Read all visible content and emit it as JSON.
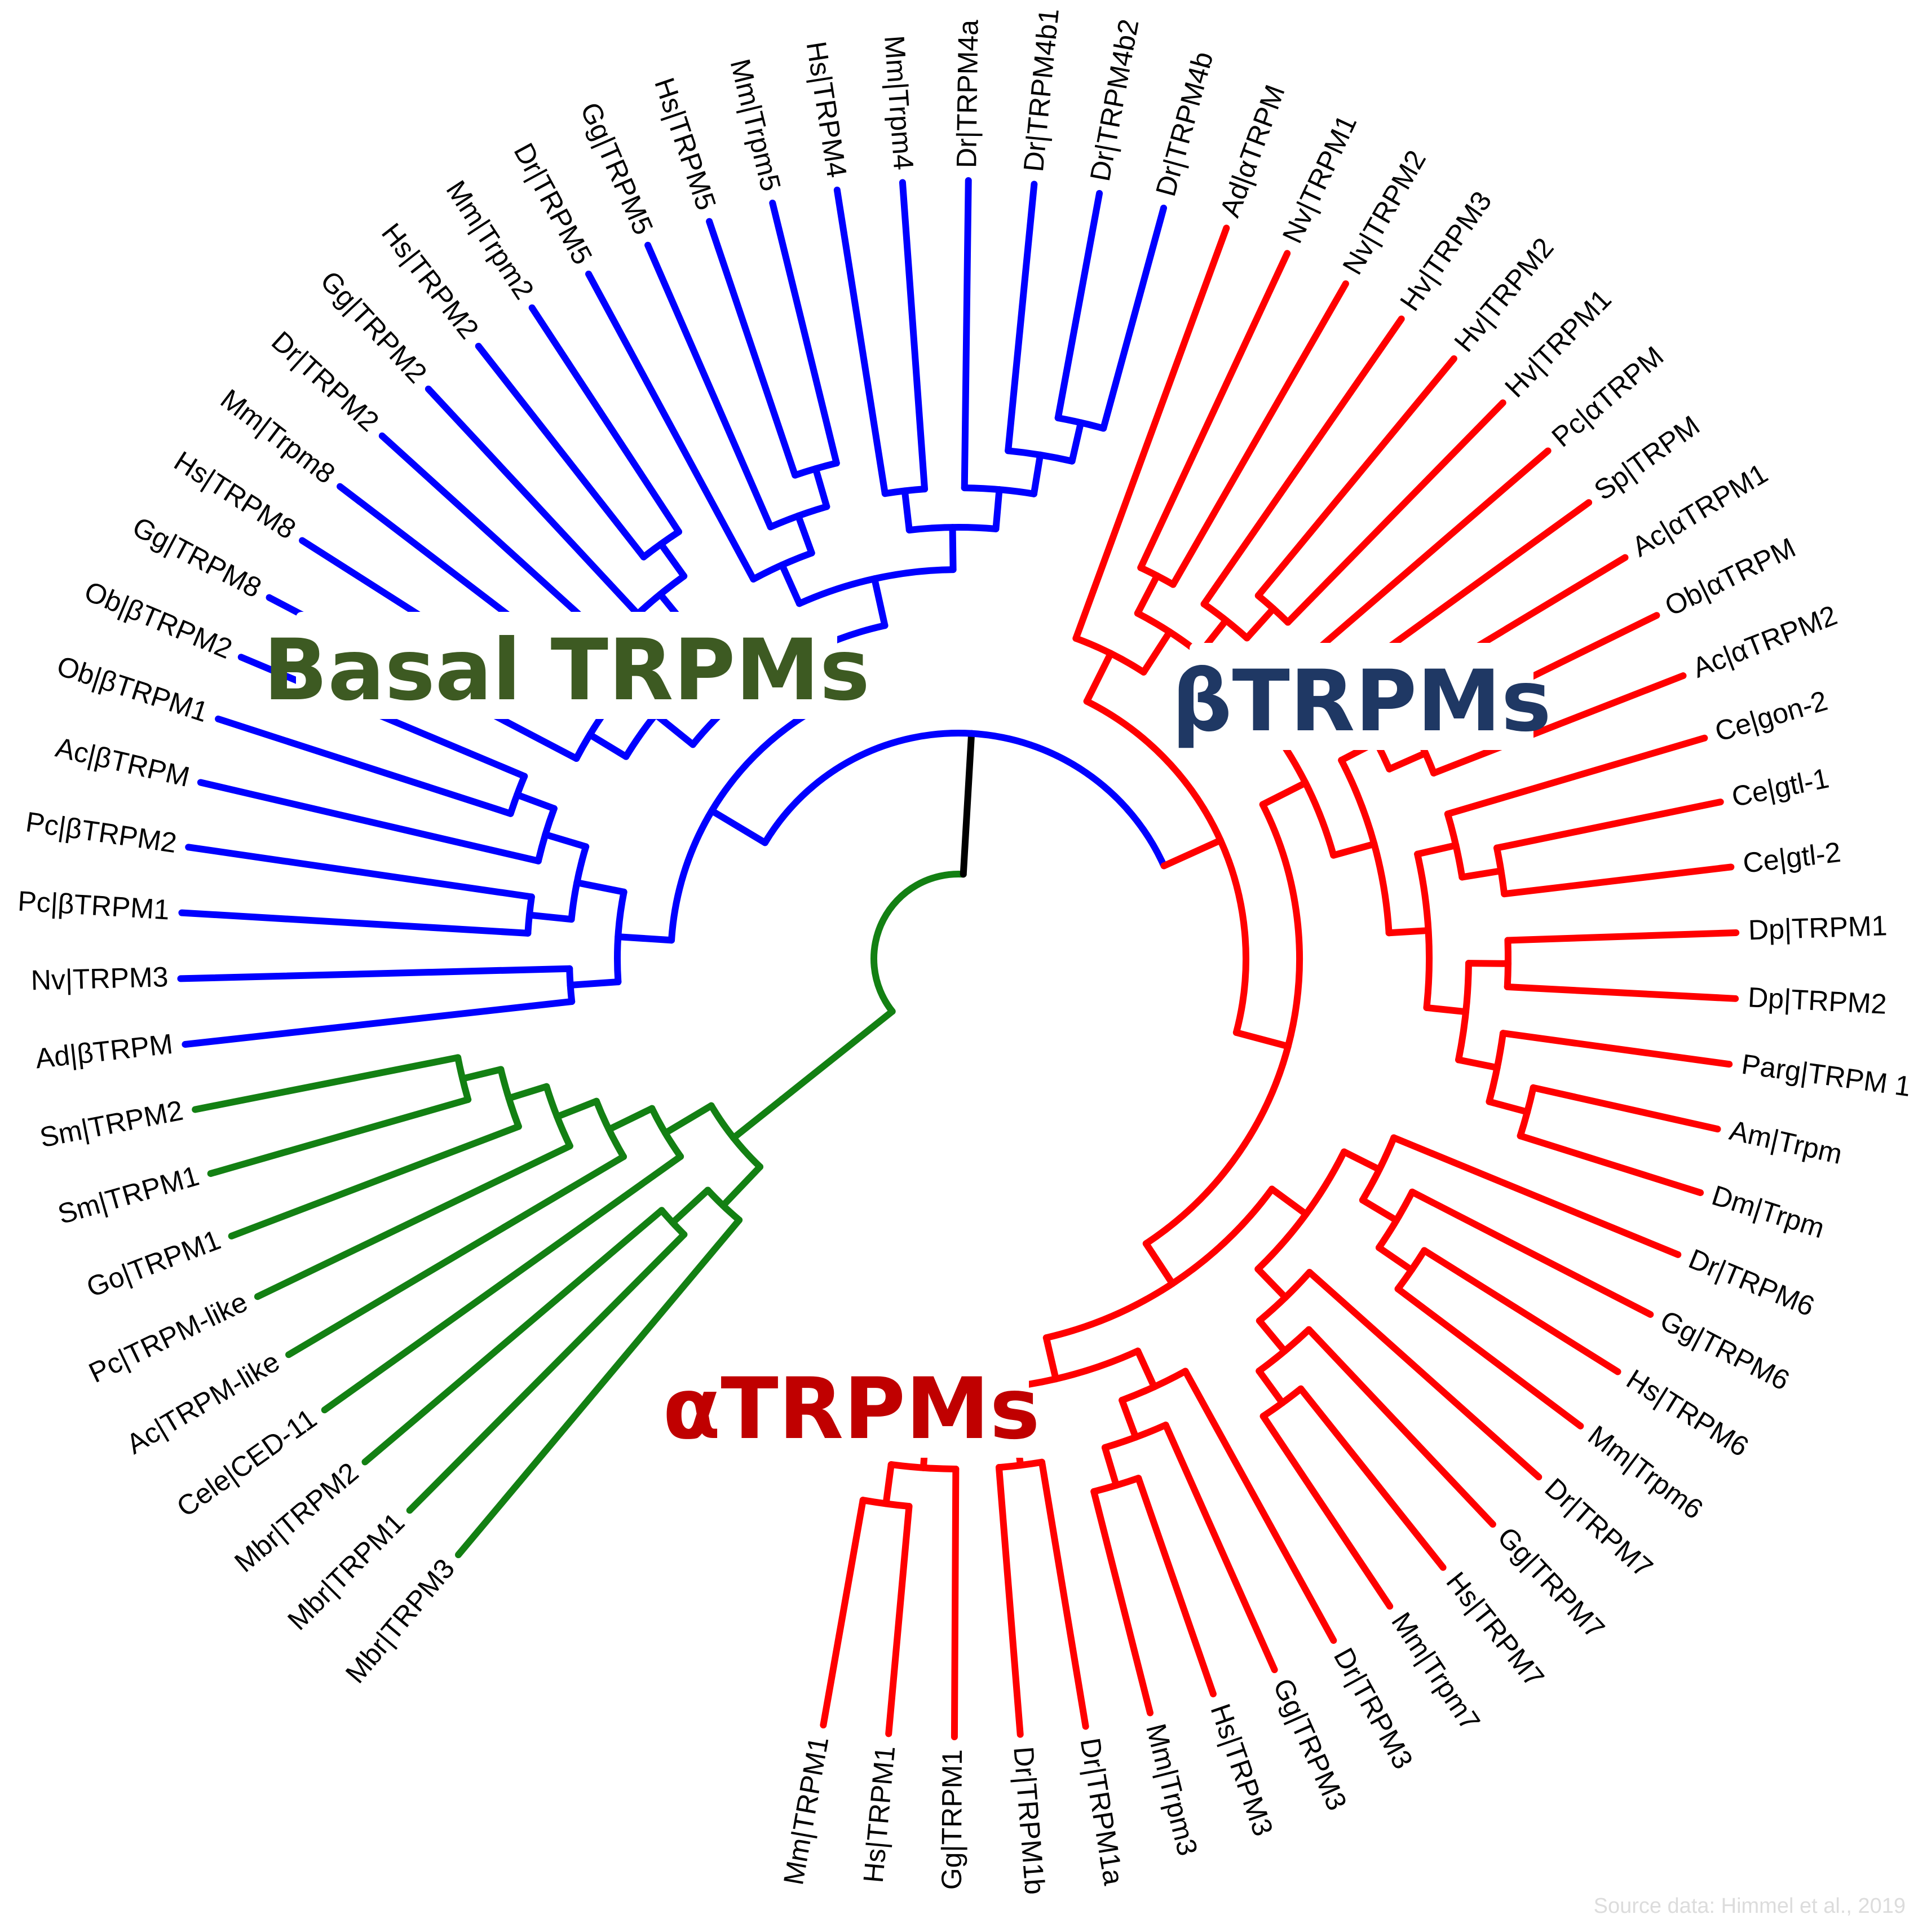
{
  "clades": {
    "basal": {
      "label": "Basal TRPMs",
      "color": "#3d5a22",
      "branch_color": "#138013"
    },
    "beta": {
      "label": "βTRPMs",
      "color": "#1f3864",
      "branch_color": "#0000ff"
    },
    "alpha": {
      "label": "αTRPMs",
      "color": "#c00000",
      "branch_color": "#ff0000"
    }
  },
  "root_color": "#000000",
  "source_note": "Source data: Himmel et al., 2019",
  "tree": {
    "children": [
      {
        "clade": "basal",
        "children": [
          {
            "children": [
              {
                "children": [
                  {
                    "name": "Mbr|TRPM3"
                  },
                  {
                    "children": [
                      {
                        "name": "Mbr|TRPM1"
                      },
                      {
                        "name": "Mbr|TRPM2"
                      }
                    ]
                  }
                ]
              },
              {
                "children": [
                  {
                    "name": "Cele|CED-11"
                  },
                  {
                    "children": [
                      {
                        "name": "Ac|TRPM-like"
                      },
                      {
                        "children": [
                          {
                            "name": "Pc|TRPM-like"
                          },
                          {
                            "children": [
                              {
                                "name": "Go|TRPM1"
                              },
                              {
                                "children": [
                                  {
                                    "name": "Sm|TRPM1"
                                  },
                                  {
                                    "name": "Sm|TRPM2"
                                  }
                                ]
                              }
                            ]
                          }
                        ]
                      }
                    ]
                  }
                ]
              }
            ]
          }
        ]
      },
      {
        "children": [
          {
            "clade": "beta",
            "children": [
              {
                "children": [
                  {
                    "children": [
                      {
                        "name": "Ad|βTRPM"
                      },
                      {
                        "name": "Nv|TRPM3"
                      }
                    ]
                  },
                  {
                    "children": [
                      {
                        "children": [
                          {
                            "name": "Pc|βTRPM1"
                          },
                          {
                            "name": "Pc|βTRPM2"
                          }
                        ]
                      },
                      {
                        "children": [
                          {
                            "name": "Ac|βTRPM"
                          },
                          {
                            "children": [
                              {
                                "name": "Ob|βTRPM1"
                              },
                              {
                                "name": "Ob|βTRPM2"
                              }
                            ]
                          }
                        ]
                      }
                    ]
                  }
                ]
              },
              {
                "children": [
                  {
                    "children": [
                      {
                        "children": [
                          {
                            "name": "Gg|TRPM8"
                          },
                          {
                            "children": [
                              {
                                "name": "Hs|TRPM8"
                              },
                              {
                                "name": "Mm|Trpm8"
                              }
                            ]
                          }
                        ]
                      },
                      {
                        "children": [
                          {
                            "name": "Dr|TRPM2"
                          },
                          {
                            "children": [
                              {
                                "name": "Gg|TRPM2"
                              },
                              {
                                "children": [
                                  {
                                    "name": "Hs|TRPM2"
                                  },
                                  {
                                    "name": "Mm|Trpm2"
                                  }
                                ]
                              }
                            ]
                          }
                        ]
                      }
                    ]
                  },
                  {
                    "children": [
                      {
                        "children": [
                          {
                            "name": "Dr|TRPM5"
                          },
                          {
                            "children": [
                              {
                                "name": "Gg|TRPM5"
                              },
                              {
                                "children": [
                                  {
                                    "name": "Hs|TRPM5"
                                  },
                                  {
                                    "name": "Mm|Trpm5"
                                  }
                                ]
                              }
                            ]
                          }
                        ]
                      },
                      {
                        "children": [
                          {
                            "children": [
                              {
                                "name": "Hs|TRPM4"
                              },
                              {
                                "name": "Mm|Trpm4"
                              }
                            ]
                          },
                          {
                            "children": [
                              {
                                "name": "Dr|TRPM4a"
                              },
                              {
                                "children": [
                                  {
                                    "name": "Dr|TRPM4b1"
                                  },
                                  {
                                    "children": [
                                      {
                                        "name": "Dr|TRPM4b2"
                                      },
                                      {
                                        "name": "Dr|TRPM4b"
                                      }
                                    ]
                                  }
                                ]
                              }
                            ]
                          }
                        ]
                      }
                    ]
                  }
                ]
              }
            ]
          },
          {
            "clade": "alpha",
            "children": [
              {
                "children": [
                  {
                    "name": "Ad|αTRPM"
                  },
                  {
                    "children": [
                      {
                        "children": [
                          {
                            "name": "Nv|TRPM1"
                          },
                          {
                            "name": "Nv|TRPM2"
                          }
                        ]
                      },
                      {
                        "children": [
                          {
                            "name": "Hv|TRPM3"
                          },
                          {
                            "children": [
                              {
                                "name": "Hv|TRPM2"
                              },
                              {
                                "name": "Hv|TRPM1"
                              }
                            ]
                          }
                        ]
                      }
                    ]
                  }
                ]
              },
              {
                "children": [
                  {
                    "children": [
                      {
                        "children": [
                          {
                            "name": "Pc|αTRPM"
                          },
                          {
                            "name": "Sp|TRPM"
                          }
                        ]
                      },
                      {
                        "children": [
                          {
                            "children": [
                              {
                                "name": "Ac|αTRPM1"
                              },
                              {
                                "children": [
                                  {
                                    "name": "Ob|αTRPM"
                                  },
                                  {
                                    "name": "Ac|αTRPM2"
                                  }
                                ]
                              }
                            ]
                          },
                          {
                            "children": [
                              {
                                "children": [
                                  {
                                    "name": "Ce|gon-2"
                                  },
                                  {
                                    "children": [
                                      {
                                        "name": "Ce|gtl-1"
                                      },
                                      {
                                        "name": "Ce|gtl-2"
                                      }
                                    ]
                                  }
                                ]
                              },
                              {
                                "children": [
                                  {
                                    "children": [
                                      {
                                        "name": "Dp|TRPM1"
                                      },
                                      {
                                        "name": "Dp|TRPM2"
                                      }
                                    ]
                                  },
                                  {
                                    "children": [
                                      {
                                        "name": "Parg|TRPM 1"
                                      },
                                      {
                                        "children": [
                                          {
                                            "name": "Am|Trpm"
                                          },
                                          {
                                            "name": "Dm|Trpm"
                                          }
                                        ]
                                      }
                                    ]
                                  }
                                ]
                              }
                            ]
                          }
                        ]
                      }
                    ]
                  },
                  {
                    "children": [
                      {
                        "children": [
                          {
                            "children": [
                              {
                                "name": "Dr|TRPM6"
                              },
                              {
                                "children": [
                                  {
                                    "name": "Gg|TRPM6"
                                  },
                                  {
                                    "children": [
                                      {
                                        "name": "Hs|TRPM6"
                                      },
                                      {
                                        "name": "Mm|Trpm6"
                                      }
                                    ]
                                  }
                                ]
                              }
                            ]
                          },
                          {
                            "children": [
                              {
                                "name": "Dr|TRPM7"
                              },
                              {
                                "children": [
                                  {
                                    "name": "Gg|TRPM7"
                                  },
                                  {
                                    "children": [
                                      {
                                        "name": "Hs|TRPM7"
                                      },
                                      {
                                        "name": "Mm|Trpm7"
                                      }
                                    ]
                                  }
                                ]
                              }
                            ]
                          }
                        ]
                      },
                      {
                        "children": [
                          {
                            "children": [
                              {
                                "name": "Dr|TRPM3"
                              },
                              {
                                "children": [
                                  {
                                    "name": "Gg|TRPM3"
                                  },
                                  {
                                    "children": [
                                      {
                                        "name": "Hs|TRPM3"
                                      },
                                      {
                                        "name": "Mm|Trpm3"
                                      }
                                    ]
                                  }
                                ]
                              }
                            ]
                          },
                          {
                            "children": [
                              {
                                "children": [
                                  {
                                    "name": "Dr|TRPM1a"
                                  },
                                  {
                                    "name": "Dr|TRPM1b"
                                  }
                                ]
                              },
                              {
                                "children": [
                                  {
                                    "name": "Gg|TRPM1"
                                  },
                                  {
                                    "children": [
                                      {
                                        "name": "Hs|TRPM1"
                                      },
                                      {
                                        "name": "Mm|TRPM1"
                                      }
                                    ]
                                  }
                                ]
                              }
                            ]
                          }
                        ]
                      }
                    ]
                  }
                ]
              }
            ]
          }
        ]
      }
    ]
  }
}
